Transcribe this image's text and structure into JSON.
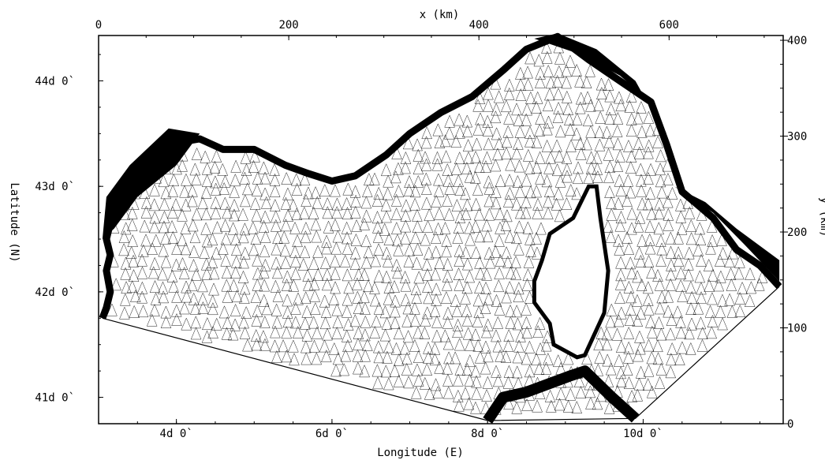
{
  "chart_data": {
    "type": "map",
    "x_axis_title": "x (km)",
    "y_axis_title": "y (km)",
    "lon_axis_title": "Longitude (E)",
    "lat_axis_title": "Latitude (N)",
    "x_km_ticks": [
      {
        "value": 0,
        "label": "0"
      },
      {
        "value": 200,
        "label": "200"
      },
      {
        "value": 400,
        "label": "400"
      },
      {
        "value": 600,
        "label": "600"
      }
    ],
    "y_km_ticks": [
      {
        "value": 0,
        "label": "0"
      },
      {
        "value": 100,
        "label": "100"
      },
      {
        "value": 200,
        "label": "200"
      },
      {
        "value": 300,
        "label": "300"
      },
      {
        "value": 400,
        "label": "400"
      }
    ],
    "lon_ticks": [
      {
        "value": 4,
        "label": "4d 0`"
      },
      {
        "value": 6,
        "label": "6d 0`"
      },
      {
        "value": 8,
        "label": "8d 0`"
      },
      {
        "value": 10,
        "label": "10d 0`"
      }
    ],
    "lat_ticks": [
      {
        "value": 41,
        "label": "41d 0`"
      },
      {
        "value": 42,
        "label": "42d 0`"
      },
      {
        "value": 43,
        "label": "43d 0`"
      },
      {
        "value": 44,
        "label": "44d 0`"
      }
    ],
    "x_km_range": [
      0,
      720
    ],
    "y_km_range": [
      0,
      405
    ],
    "lon_range": [
      3.0,
      11.8
    ],
    "lat_range": [
      40.75,
      44.43
    ],
    "mesh_color": "#000000",
    "land_color": "#000000",
    "background": "#ffffff",
    "domain_boundary_lonlat": [
      [
        3.05,
        41.75
      ],
      [
        8.0,
        40.78
      ],
      [
        9.9,
        40.8
      ],
      [
        11.75,
        42.05
      ]
    ],
    "coast_mainland_lonlat": [
      [
        3.05,
        41.75
      ],
      [
        3.1,
        41.85
      ],
      [
        3.15,
        42.0
      ],
      [
        3.1,
        42.2
      ],
      [
        3.15,
        42.35
      ],
      [
        3.1,
        42.5
      ],
      [
        3.2,
        42.8
      ],
      [
        3.5,
        43.1
      ],
      [
        3.9,
        43.4
      ],
      [
        4.3,
        43.45
      ],
      [
        4.6,
        43.35
      ],
      [
        5.0,
        43.35
      ],
      [
        5.4,
        43.2
      ],
      [
        5.7,
        43.12
      ],
      [
        6.0,
        43.05
      ],
      [
        6.3,
        43.1
      ],
      [
        6.7,
        43.3
      ],
      [
        7.0,
        43.5
      ],
      [
        7.4,
        43.7
      ],
      [
        7.8,
        43.85
      ],
      [
        8.2,
        44.1
      ],
      [
        8.5,
        44.3
      ],
      [
        8.9,
        44.42
      ],
      [
        9.3,
        44.2
      ],
      [
        9.7,
        44.0
      ],
      [
        10.1,
        43.8
      ],
      [
        10.3,
        43.4
      ],
      [
        10.5,
        42.95
      ],
      [
        10.9,
        42.7
      ],
      [
        11.2,
        42.4
      ],
      [
        11.5,
        42.25
      ],
      [
        11.75,
        42.05
      ]
    ],
    "corsica_lonlat": [
      [
        9.4,
        43.0
      ],
      [
        9.45,
        42.7
      ],
      [
        9.55,
        42.2
      ],
      [
        9.5,
        41.8
      ],
      [
        9.25,
        41.4
      ],
      [
        9.15,
        41.38
      ],
      [
        8.85,
        41.5
      ],
      [
        8.8,
        41.7
      ],
      [
        8.6,
        41.9
      ],
      [
        8.6,
        42.1
      ],
      [
        8.7,
        42.3
      ],
      [
        8.8,
        42.55
      ],
      [
        9.1,
        42.7
      ],
      [
        9.3,
        43.0
      ]
    ],
    "sardinia_lonlat": [
      [
        8.0,
        40.78
      ],
      [
        8.2,
        41.0
      ],
      [
        8.5,
        41.05
      ],
      [
        9.05,
        41.2
      ],
      [
        9.25,
        41.25
      ],
      [
        9.6,
        41.0
      ],
      [
        9.9,
        40.8
      ]
    ]
  }
}
